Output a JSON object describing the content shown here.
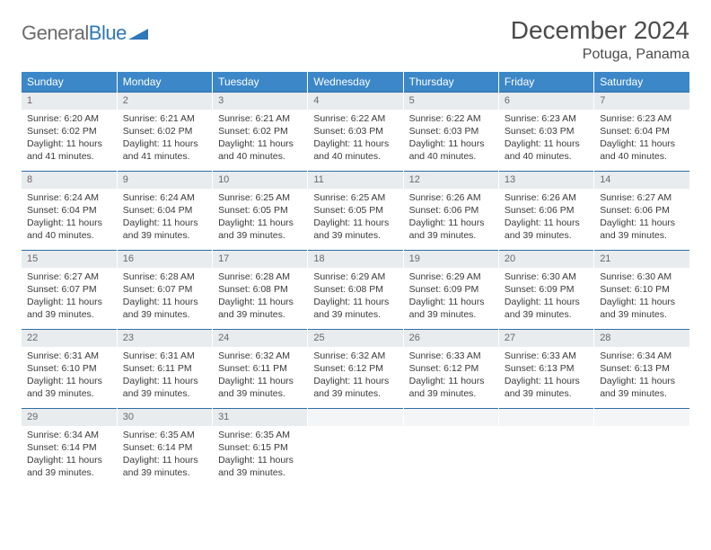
{
  "brand": {
    "part1": "General",
    "part2": "Blue"
  },
  "title": "December 2024",
  "location": "Potuga, Panama",
  "columns": [
    "Sunday",
    "Monday",
    "Tuesday",
    "Wednesday",
    "Thursday",
    "Friday",
    "Saturday"
  ],
  "colors": {
    "header_bg": "#3b87c8",
    "header_text": "#ffffff",
    "daynum_bg": "#e9ecef",
    "rule": "#2e6da4",
    "text": "#3a3a3a",
    "brand_gray": "#6b6b6b",
    "brand_blue": "#2e77b8"
  },
  "weeks": [
    [
      {
        "n": "1",
        "sr": "6:20 AM",
        "ss": "6:02 PM",
        "dl": "11 hours and 41 minutes."
      },
      {
        "n": "2",
        "sr": "6:21 AM",
        "ss": "6:02 PM",
        "dl": "11 hours and 41 minutes."
      },
      {
        "n": "3",
        "sr": "6:21 AM",
        "ss": "6:02 PM",
        "dl": "11 hours and 40 minutes."
      },
      {
        "n": "4",
        "sr": "6:22 AM",
        "ss": "6:03 PM",
        "dl": "11 hours and 40 minutes."
      },
      {
        "n": "5",
        "sr": "6:22 AM",
        "ss": "6:03 PM",
        "dl": "11 hours and 40 minutes."
      },
      {
        "n": "6",
        "sr": "6:23 AM",
        "ss": "6:03 PM",
        "dl": "11 hours and 40 minutes."
      },
      {
        "n": "7",
        "sr": "6:23 AM",
        "ss": "6:04 PM",
        "dl": "11 hours and 40 minutes."
      }
    ],
    [
      {
        "n": "8",
        "sr": "6:24 AM",
        "ss": "6:04 PM",
        "dl": "11 hours and 40 minutes."
      },
      {
        "n": "9",
        "sr": "6:24 AM",
        "ss": "6:04 PM",
        "dl": "11 hours and 39 minutes."
      },
      {
        "n": "10",
        "sr": "6:25 AM",
        "ss": "6:05 PM",
        "dl": "11 hours and 39 minutes."
      },
      {
        "n": "11",
        "sr": "6:25 AM",
        "ss": "6:05 PM",
        "dl": "11 hours and 39 minutes."
      },
      {
        "n": "12",
        "sr": "6:26 AM",
        "ss": "6:06 PM",
        "dl": "11 hours and 39 minutes."
      },
      {
        "n": "13",
        "sr": "6:26 AM",
        "ss": "6:06 PM",
        "dl": "11 hours and 39 minutes."
      },
      {
        "n": "14",
        "sr": "6:27 AM",
        "ss": "6:06 PM",
        "dl": "11 hours and 39 minutes."
      }
    ],
    [
      {
        "n": "15",
        "sr": "6:27 AM",
        "ss": "6:07 PM",
        "dl": "11 hours and 39 minutes."
      },
      {
        "n": "16",
        "sr": "6:28 AM",
        "ss": "6:07 PM",
        "dl": "11 hours and 39 minutes."
      },
      {
        "n": "17",
        "sr": "6:28 AM",
        "ss": "6:08 PM",
        "dl": "11 hours and 39 minutes."
      },
      {
        "n": "18",
        "sr": "6:29 AM",
        "ss": "6:08 PM",
        "dl": "11 hours and 39 minutes."
      },
      {
        "n": "19",
        "sr": "6:29 AM",
        "ss": "6:09 PM",
        "dl": "11 hours and 39 minutes."
      },
      {
        "n": "20",
        "sr": "6:30 AM",
        "ss": "6:09 PM",
        "dl": "11 hours and 39 minutes."
      },
      {
        "n": "21",
        "sr": "6:30 AM",
        "ss": "6:10 PM",
        "dl": "11 hours and 39 minutes."
      }
    ],
    [
      {
        "n": "22",
        "sr": "6:31 AM",
        "ss": "6:10 PM",
        "dl": "11 hours and 39 minutes."
      },
      {
        "n": "23",
        "sr": "6:31 AM",
        "ss": "6:11 PM",
        "dl": "11 hours and 39 minutes."
      },
      {
        "n": "24",
        "sr": "6:32 AM",
        "ss": "6:11 PM",
        "dl": "11 hours and 39 minutes."
      },
      {
        "n": "25",
        "sr": "6:32 AM",
        "ss": "6:12 PM",
        "dl": "11 hours and 39 minutes."
      },
      {
        "n": "26",
        "sr": "6:33 AM",
        "ss": "6:12 PM",
        "dl": "11 hours and 39 minutes."
      },
      {
        "n": "27",
        "sr": "6:33 AM",
        "ss": "6:13 PM",
        "dl": "11 hours and 39 minutes."
      },
      {
        "n": "28",
        "sr": "6:34 AM",
        "ss": "6:13 PM",
        "dl": "11 hours and 39 minutes."
      }
    ],
    [
      {
        "n": "29",
        "sr": "6:34 AM",
        "ss": "6:14 PM",
        "dl": "11 hours and 39 minutes."
      },
      {
        "n": "30",
        "sr": "6:35 AM",
        "ss": "6:14 PM",
        "dl": "11 hours and 39 minutes."
      },
      {
        "n": "31",
        "sr": "6:35 AM",
        "ss": "6:15 PM",
        "dl": "11 hours and 39 minutes."
      },
      {
        "empty": true
      },
      {
        "empty": true
      },
      {
        "empty": true
      },
      {
        "empty": true
      }
    ]
  ],
  "labels": {
    "sunrise": "Sunrise:",
    "sunset": "Sunset:",
    "daylight": "Daylight:"
  }
}
